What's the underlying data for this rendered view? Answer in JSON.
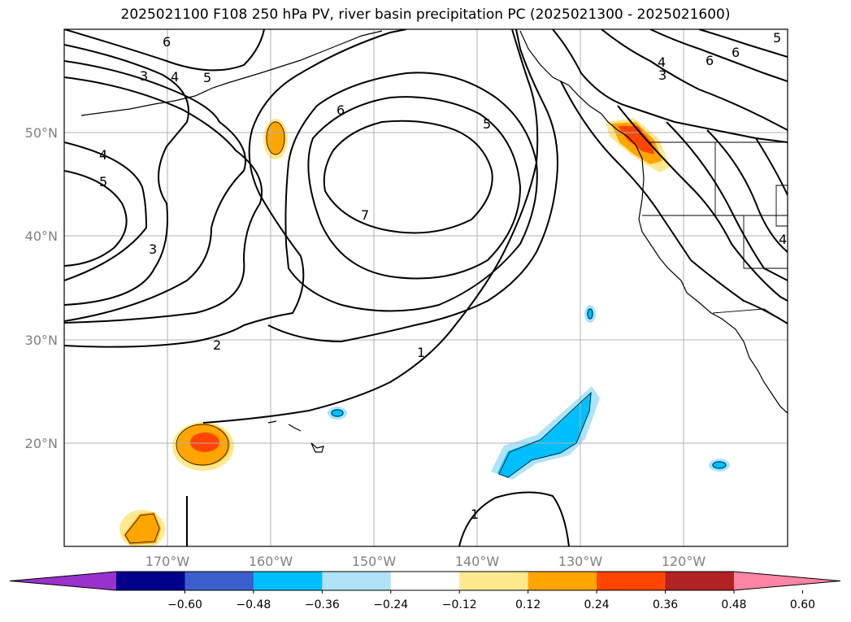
{
  "title": "2025021100 F108 250 hPa PV, river basin precipitation PC (2025021300 - 2025021600)",
  "map": {
    "lat_labels": [
      "50°N",
      "40°N",
      "30°N",
      "20°N"
    ],
    "lon_labels": [
      "170°W",
      "160°W",
      "150°W",
      "140°W",
      "130°W",
      "120°W"
    ],
    "contour_labels": [
      "6",
      "3",
      "4",
      "5",
      "4",
      "5",
      "3",
      "2",
      "6",
      "7",
      "5",
      "1",
      "1",
      "4",
      "3",
      "6",
      "6",
      "5",
      "4"
    ]
  },
  "colorbar": {
    "ticks": [
      "−0.60",
      "−0.48",
      "−0.36",
      "−0.24",
      "−0.12",
      "0.12",
      "0.24",
      "0.36",
      "0.48",
      "0.60"
    ],
    "colors": [
      "#9932cc",
      "#00008b",
      "#3a5fcd",
      "#00bfff",
      "#aee3f8",
      "#ffffff",
      "#fee98f",
      "#ffa500",
      "#ff4500",
      "#b22222",
      "#ff85a5"
    ]
  }
}
